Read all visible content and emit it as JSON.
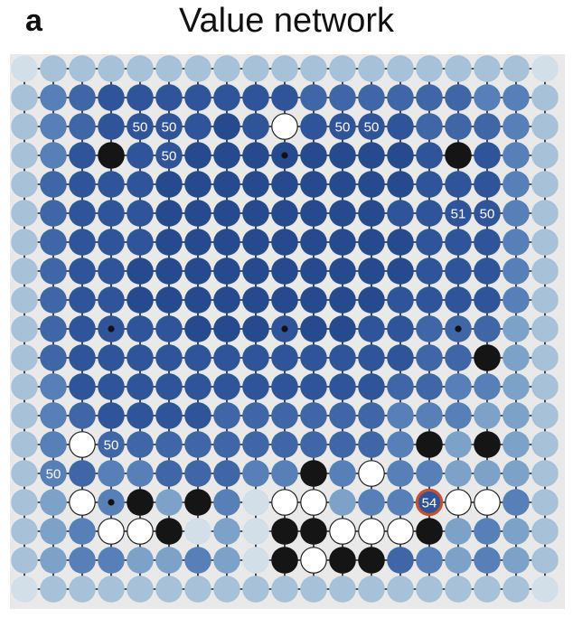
{
  "panel_label": "a",
  "title": "Value network",
  "board_size": 19,
  "colors": {
    "board": "#e9e9ea",
    "grid": "#1f1f1f",
    "black_stone": "#151515",
    "white_stone": "#ffffff",
    "highlight_ring": "#c8502c",
    "label_text": "#ffffff",
    "value_scale": [
      "#d2dfe9",
      "#a7c1d8",
      "#7da2c9",
      "#5780b8",
      "#3f66a7",
      "#2f549a",
      "#27498e"
    ]
  },
  "values": [
    [
      0,
      1,
      1,
      1,
      1,
      1,
      1,
      1,
      1,
      1,
      1,
      1,
      1,
      1,
      1,
      1,
      1,
      1,
      0
    ],
    [
      1,
      3,
      4,
      5,
      5,
      5,
      5,
      5,
      5,
      5,
      4,
      4,
      4,
      4,
      4,
      4,
      3,
      3,
      1
    ],
    [
      1,
      3,
      4,
      5,
      5,
      5,
      5,
      6,
      5,
      0,
      5,
      5,
      5,
      5,
      4,
      4,
      4,
      3,
      1
    ],
    [
      1,
      3,
      5,
      0,
      5,
      5,
      6,
      6,
      6,
      6,
      6,
      6,
      6,
      6,
      5,
      0,
      5,
      3,
      1
    ],
    [
      1,
      4,
      5,
      5,
      5,
      6,
      6,
      6,
      6,
      6,
      6,
      6,
      6,
      6,
      5,
      5,
      5,
      3,
      1
    ],
    [
      1,
      4,
      5,
      5,
      5,
      6,
      6,
      6,
      6,
      6,
      6,
      6,
      6,
      5,
      5,
      5,
      5,
      3,
      1
    ],
    [
      1,
      4,
      5,
      5,
      5,
      6,
      6,
      6,
      6,
      6,
      6,
      6,
      6,
      6,
      5,
      5,
      5,
      3,
      1
    ],
    [
      1,
      4,
      5,
      5,
      6,
      6,
      6,
      6,
      6,
      6,
      6,
      6,
      6,
      6,
      5,
      5,
      5,
      3,
      1
    ],
    [
      1,
      4,
      5,
      5,
      6,
      6,
      6,
      6,
      6,
      6,
      6,
      6,
      6,
      5,
      5,
      5,
      5,
      3,
      1
    ],
    [
      1,
      4,
      5,
      5,
      5,
      5,
      6,
      6,
      6,
      5,
      6,
      6,
      5,
      5,
      4,
      4,
      4,
      2,
      1
    ],
    [
      1,
      4,
      5,
      5,
      5,
      5,
      5,
      5,
      5,
      5,
      5,
      5,
      5,
      5,
      4,
      4,
      0,
      2,
      1
    ],
    [
      1,
      3,
      5,
      5,
      5,
      5,
      5,
      5,
      5,
      5,
      5,
      5,
      5,
      4,
      4,
      3,
      3,
      2,
      1
    ],
    [
      1,
      3,
      4,
      5,
      5,
      5,
      5,
      4,
      4,
      4,
      4,
      4,
      4,
      3,
      3,
      3,
      2,
      2,
      1
    ],
    [
      1,
      3,
      4,
      4,
      4,
      4,
      4,
      4,
      4,
      4,
      4,
      4,
      4,
      3,
      3,
      2,
      3,
      2,
      1
    ],
    [
      1,
      3,
      4,
      3,
      3,
      4,
      4,
      4,
      3,
      3,
      0,
      3,
      0,
      3,
      3,
      2,
      2,
      2,
      1
    ],
    [
      1,
      2,
      3,
      3,
      0,
      2,
      0,
      3,
      0,
      0,
      3,
      2,
      3,
      3,
      0,
      0,
      0,
      3,
      1
    ],
    [
      1,
      2,
      3,
      3,
      0,
      0,
      0,
      2,
      0,
      0,
      0,
      0,
      0,
      0,
      3,
      2,
      3,
      2,
      1
    ],
    [
      1,
      2,
      3,
      3,
      2,
      2,
      3,
      2,
      0,
      0,
      0,
      0,
      0,
      4,
      3,
      2,
      3,
      2,
      1
    ],
    [
      0,
      1,
      1,
      1,
      1,
      1,
      1,
      1,
      1,
      1,
      1,
      1,
      1,
      1,
      1,
      1,
      1,
      1,
      0
    ]
  ],
  "black_stones": [
    [
      3,
      3
    ],
    [
      3,
      15
    ],
    [
      10,
      16
    ],
    [
      13,
      14
    ],
    [
      13,
      16
    ],
    [
      14,
      10
    ],
    [
      15,
      4
    ],
    [
      15,
      6
    ],
    [
      16,
      5
    ],
    [
      16,
      9
    ],
    [
      16,
      10
    ],
    [
      16,
      14
    ],
    [
      17,
      9
    ],
    [
      17,
      11
    ],
    [
      17,
      12
    ]
  ],
  "white_stones": [
    [
      2,
      9
    ],
    [
      13,
      2
    ],
    [
      14,
      12
    ],
    [
      15,
      2
    ],
    [
      15,
      9
    ],
    [
      15,
      10
    ],
    [
      15,
      15
    ],
    [
      15,
      16
    ],
    [
      16,
      3
    ],
    [
      16,
      4
    ],
    [
      16,
      11
    ],
    [
      16,
      12
    ],
    [
      16,
      13
    ],
    [
      17,
      10
    ]
  ],
  "star_points": [
    [
      3,
      9
    ],
    [
      9,
      3
    ],
    [
      9,
      9
    ],
    [
      9,
      15
    ],
    [
      15,
      3
    ]
  ],
  "highlight": [
    15,
    14
  ],
  "labels": [
    {
      "row": 2,
      "col": 4,
      "text": "50"
    },
    {
      "row": 2,
      "col": 5,
      "text": "50"
    },
    {
      "row": 2,
      "col": 11,
      "text": "50"
    },
    {
      "row": 2,
      "col": 12,
      "text": "50"
    },
    {
      "row": 3,
      "col": 5,
      "text": "50"
    },
    {
      "row": 5,
      "col": 15,
      "text": "51"
    },
    {
      "row": 5,
      "col": 16,
      "text": "50"
    },
    {
      "row": 13,
      "col": 3,
      "text": "50"
    },
    {
      "row": 14,
      "col": 1,
      "text": "50"
    },
    {
      "row": 15,
      "col": 14,
      "text": "54"
    }
  ]
}
